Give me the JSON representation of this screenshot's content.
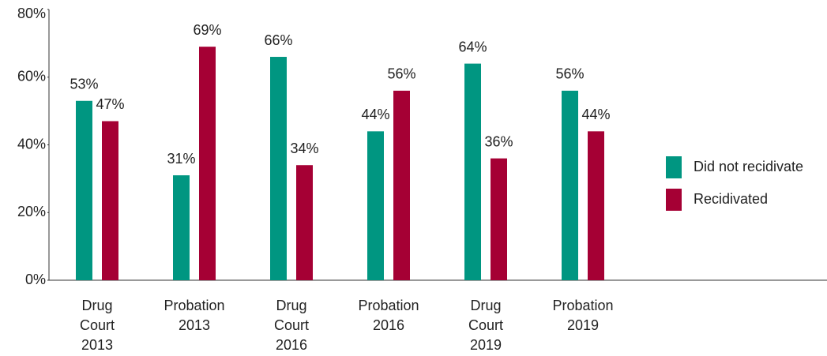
{
  "chart_data": {
    "type": "bar",
    "categories": [
      "Drug\nCourt\n2013",
      "Probation\n2013",
      "Drug\nCourt\n2016",
      "Probation\n2016",
      "Drug\nCourt\n2019",
      "Probation\n2019"
    ],
    "series": [
      {
        "name": "Did not recidivate",
        "color": "#009681",
        "values": [
          53,
          31,
          66,
          44,
          64,
          56
        ],
        "value_labels": [
          "53%",
          "31%",
          "66%",
          "44%",
          "64%",
          "56%"
        ]
      },
      {
        "name": "Recidivated",
        "color": "#a50034",
        "values": [
          47,
          69,
          34,
          56,
          36,
          44
        ],
        "value_labels": [
          "47%",
          "69%",
          "34%",
          "56%",
          "36%",
          "44%"
        ]
      }
    ],
    "ylim": [
      0,
      80
    ],
    "yticks": [
      {
        "value": 0,
        "label": "0%"
      },
      {
        "value": 20,
        "label": "20%"
      },
      {
        "value": 40,
        "label": "40%"
      },
      {
        "value": 60,
        "label": "60%"
      },
      {
        "value": 80,
        "label": "80%"
      }
    ],
    "legend": "right"
  }
}
